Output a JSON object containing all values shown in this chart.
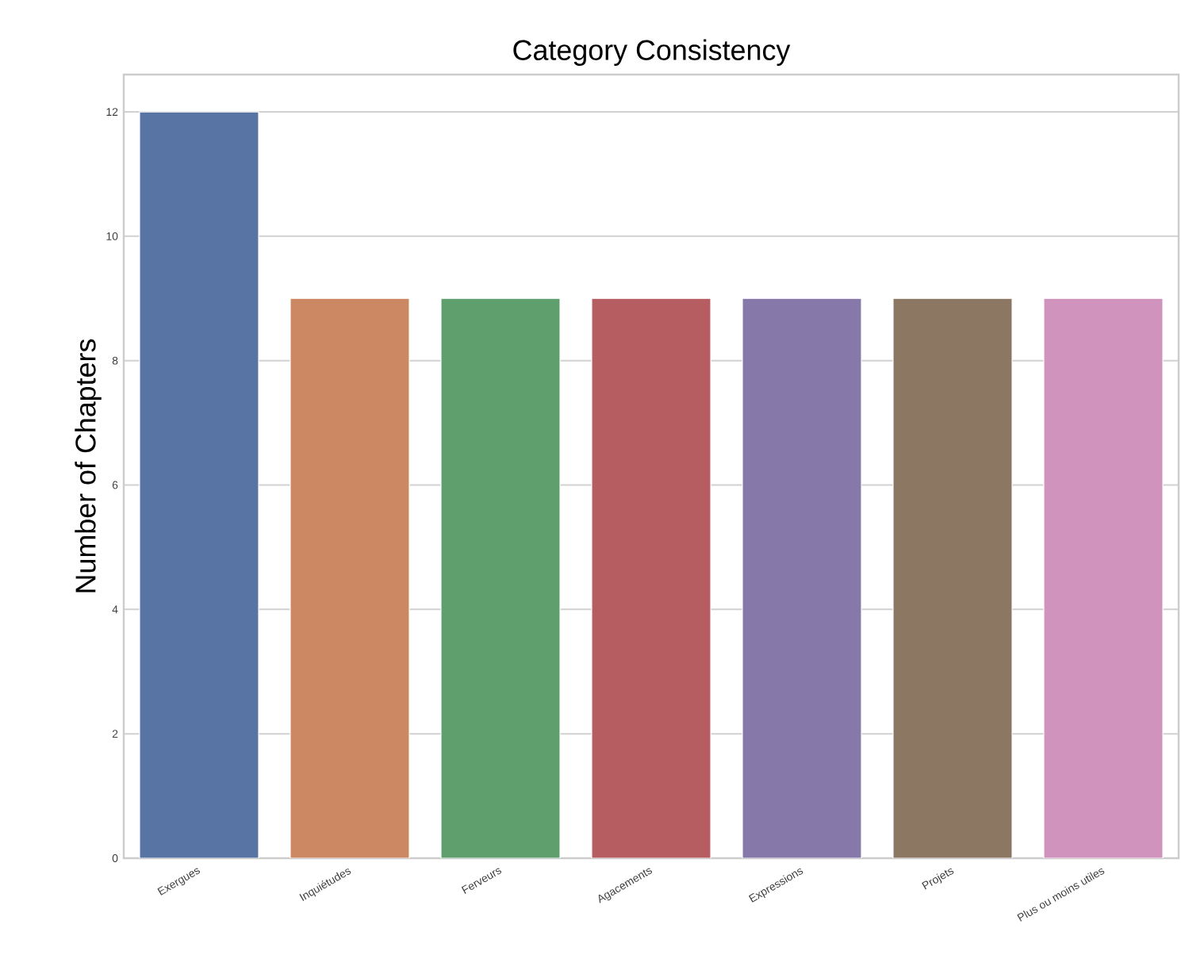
{
  "chart_data": {
    "type": "bar",
    "title": "Category Consistency",
    "ylabel": "Number of Chapters",
    "categories": [
      "Exergues",
      "Inquiétudes",
      "Ferveurs",
      "Agacements",
      "Expressions",
      "Projets",
      "Plus ou moins utiles"
    ],
    "values": [
      12,
      9,
      9,
      9,
      9,
      9,
      9
    ],
    "colors": [
      "#5874a4",
      "#cc8862",
      "#5f9f6e",
      "#b55d60",
      "#8778aa",
      "#8c7763",
      "#d093be"
    ],
    "ylim": [
      0,
      12.6
    ],
    "yticks": [
      0,
      2,
      4,
      6,
      8,
      10,
      12
    ],
    "grid": "y"
  }
}
